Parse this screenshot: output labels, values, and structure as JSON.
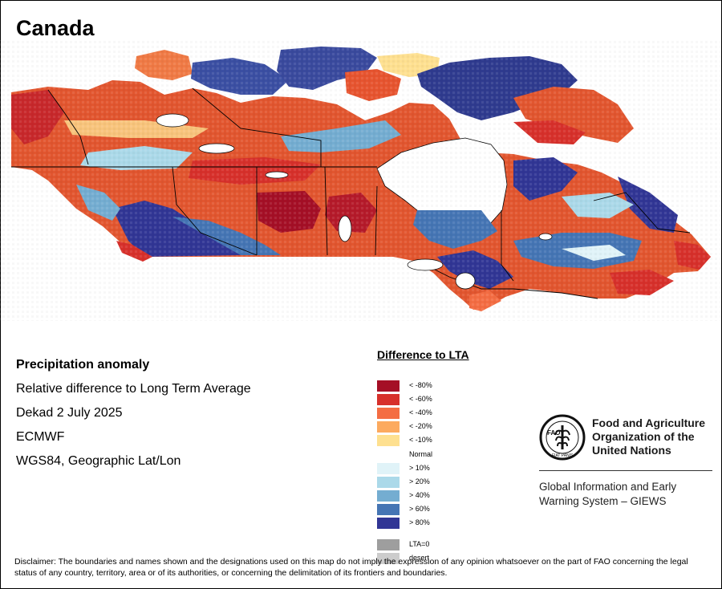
{
  "map": {
    "title": "Canada",
    "region": "Canada",
    "variable": "Precipitation anomaly"
  },
  "info": {
    "heading": "Precipitation anomaly",
    "line1": "Relative difference to Long Term Average",
    "line2": "Dekad 2 July 2025",
    "line3": "ECMWF",
    "line4": "WGS84, Geographic Lat/Lon"
  },
  "legend": {
    "title": "Difference to LTA",
    "items": [
      {
        "label": "< -80%",
        "color": "#a50f26"
      },
      {
        "label": "< -60%",
        "color": "#d7302b"
      },
      {
        "label": "< -40%",
        "color": "#f46d43"
      },
      {
        "label": "< -20%",
        "color": "#fcaa5f"
      },
      {
        "label": "< -10%",
        "color": "#fee090"
      },
      {
        "label": "Normal",
        "color": "#ffffff"
      },
      {
        "label": "> 10%",
        "color": "#e0f3f8"
      },
      {
        "label": "> 20%",
        "color": "#abd9e9"
      },
      {
        "label": "> 40%",
        "color": "#74add1"
      },
      {
        "label": "> 60%",
        "color": "#4575b4"
      },
      {
        "label": "> 80%",
        "color": "#313695"
      },
      {
        "label": "LTA=0",
        "color": "#9e9e9e"
      },
      {
        "label": "desert",
        "color": "#cccccc"
      }
    ]
  },
  "logo": {
    "org_line1": "Food and Agriculture",
    "org_line2": "Organization of the",
    "org_line3": "United Nations",
    "emblem_text": "FAO",
    "motto": "FIAT PANIS",
    "system_line1": "Global Information and Early",
    "system_line2": "Warning System – GIEWS"
  },
  "disclaimer": "Disclaimer: The boundaries and names shown and the designations used on this map do not imply the expression of any opinion whatsoever on the part of FAO concerning the legal status of any country, territory, area or of its authorities, or concerning the delimitation of its frontiers and boundaries.",
  "colors": {
    "water": "#ffffff",
    "border": "#000000"
  }
}
